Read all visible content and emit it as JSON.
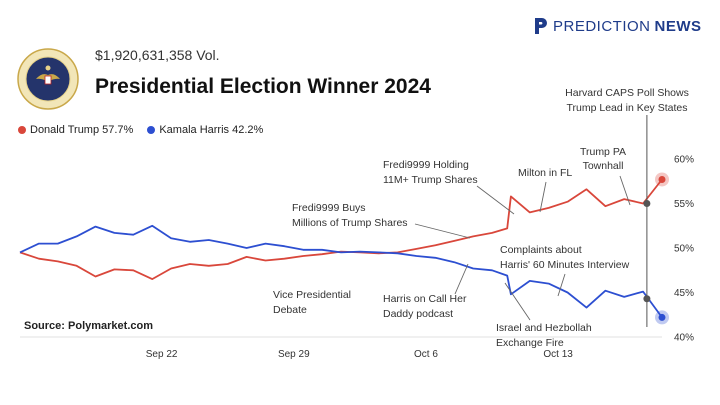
{
  "header": {
    "volume": "$1,920,631,358 Vol.",
    "title": "Presidential Election Winner 2024"
  },
  "brand": {
    "part1": "PREDICTION",
    "part2": "NEWS"
  },
  "source": "Source: Polymarket.com",
  "legend": [
    {
      "label": "Donald Trump 57.7%",
      "color": "#d9473b"
    },
    {
      "label": "Kamala Harris 42.2%",
      "color": "#2d4fd1"
    }
  ],
  "colors": {
    "trump": "#d9473b",
    "harris": "#2d4fd1",
    "brand": "#1f3c8a"
  },
  "chart_data": {
    "type": "line",
    "xlabel": "",
    "ylabel": "",
    "x_ticks": [
      "Sep 22",
      "Sep 29",
      "Oct 6",
      "Oct 13"
    ],
    "ylim": [
      40,
      62
    ],
    "y_ticks": [
      "40%",
      "45%",
      "50%",
      "55%",
      "60%"
    ],
    "series": [
      {
        "name": "Donald Trump",
        "x": [
          0,
          1,
          2,
          3,
          4,
          5,
          6,
          7,
          8,
          9,
          10,
          11,
          12,
          13,
          14,
          15,
          16,
          17,
          18,
          19,
          20,
          21,
          22,
          23,
          24,
          25,
          25.8,
          26,
          27,
          28,
          29,
          30,
          31,
          32,
          33,
          34
        ],
        "values": [
          49.5,
          48.8,
          48.5,
          48,
          46.8,
          47.6,
          47.5,
          46.5,
          47.7,
          48.2,
          48,
          48.2,
          49,
          48.6,
          48.8,
          49.1,
          49.3,
          49.6,
          49.5,
          49.4,
          49.5,
          49.9,
          50.3,
          50.8,
          51.3,
          51.7,
          52.2,
          55.8,
          54,
          54.5,
          55.2,
          56.6,
          54.7,
          55.5,
          55,
          57.7
        ]
      },
      {
        "name": "Kamala Harris",
        "x": [
          0,
          1,
          2,
          3,
          4,
          5,
          6,
          7,
          8,
          9,
          10,
          11,
          12,
          13,
          14,
          15,
          16,
          17,
          18,
          19,
          20,
          21,
          22,
          23,
          24,
          25,
          25.8,
          26,
          27,
          28,
          29,
          30,
          31,
          32,
          33,
          34
        ],
        "values": [
          49.5,
          50.5,
          50.5,
          51.3,
          52.4,
          51.7,
          51.5,
          52.5,
          51.1,
          50.7,
          50.9,
          50.5,
          50,
          50.5,
          50.2,
          49.8,
          49.8,
          49.5,
          49.6,
          49.5,
          49.4,
          49.1,
          48.9,
          48.4,
          47.7,
          47.5,
          46.9,
          44.8,
          46.3,
          46,
          45,
          43.3,
          45.2,
          44.5,
          45.1,
          42.2
        ]
      }
    ],
    "annotations": [
      {
        "lines": [
          "Harvard CAPS Poll Shows",
          "Trump Lead in Key States"
        ]
      },
      {
        "lines": [
          "Trump PA",
          "Townhall"
        ]
      },
      {
        "lines": [
          "Milton in FL"
        ]
      },
      {
        "lines": [
          "Fredi9999 Holding",
          "11M+ Trump Shares"
        ]
      },
      {
        "lines": [
          "Fredi9999 Buys",
          "Millions of Trump Shares"
        ]
      },
      {
        "lines": [
          "Complaints about",
          "Harris' 60 Minutes Interview"
        ]
      },
      {
        "lines": [
          "Vice Presidential",
          "Debate"
        ]
      },
      {
        "lines": [
          "Harris on Call Her",
          "Daddy podcast"
        ]
      },
      {
        "lines": [
          "Israel and Hezbollah",
          "Exchange Fire"
        ]
      }
    ]
  }
}
